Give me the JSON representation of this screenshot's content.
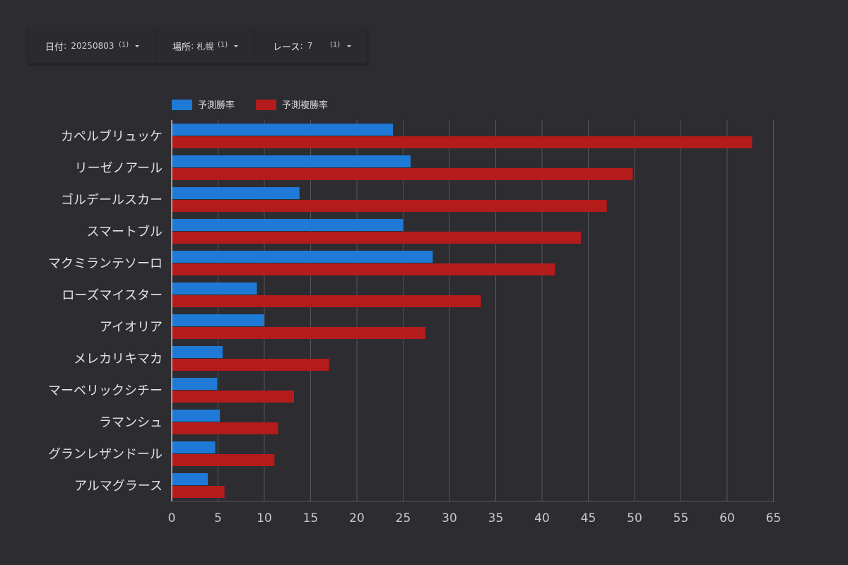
{
  "filters": [
    {
      "label": "日付",
      "sep": ":",
      "value": "20250803",
      "count": "(1)",
      "icon": "chevron-down-icon"
    },
    {
      "label": "場所",
      "sep": ":",
      "value": "札幌",
      "count": "(1)",
      "icon": "chevron-down-icon"
    },
    {
      "label": "レース",
      "sep": ":",
      "value": "7",
      "count": "(1)",
      "icon": "chevron-down-icon"
    }
  ],
  "colors": {
    "background": "#2d2c31",
    "series1": "#1e7ad6",
    "series2": "#b41c1c",
    "grid": "#55545a",
    "axis": "#bdbdbd"
  },
  "chart_data": {
    "type": "bar",
    "orientation": "horizontal",
    "title": "",
    "xlabel": "",
    "ylabel": "",
    "xlim": [
      0,
      65
    ],
    "xticks": [
      0,
      5,
      10,
      15,
      20,
      25,
      30,
      35,
      40,
      45,
      50,
      55,
      60,
      65
    ],
    "grid": true,
    "legend_position": "top-left",
    "categories": [
      "カペルブリュッケ",
      "リーゼノアール",
      "ゴルデールスカー",
      "スマートブル",
      "マクミランテソーロ",
      "ローズマイスター",
      "アイオリア",
      "メレカリキマカ",
      "マーベリックシチー",
      "ラマンシュ",
      "グランレザンドール",
      "アルマグラース"
    ],
    "series": [
      {
        "name": "予測勝率",
        "values": [
          23.9,
          25.8,
          13.8,
          25.0,
          28.2,
          9.2,
          10.0,
          5.5,
          4.9,
          5.2,
          4.7,
          3.9
        ]
      },
      {
        "name": "予測複勝率",
        "values": [
          62.7,
          49.8,
          47.0,
          44.2,
          41.4,
          33.4,
          27.4,
          17.0,
          13.2,
          11.5,
          11.1,
          5.7
        ]
      }
    ]
  }
}
